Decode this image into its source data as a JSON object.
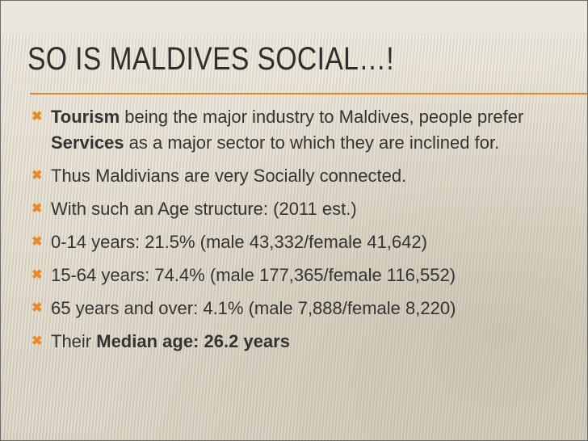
{
  "slide": {
    "title": "SO IS MALDIVES SOCIAL…!",
    "accent_color": "#e08a2e",
    "bullet_icon": "x-mark-icon",
    "bullets": [
      {
        "parts": [
          {
            "bold": "Tourism"
          },
          {
            "text": " being the major industry to Maldives, people prefer "
          },
          {
            "bold": "Services"
          },
          {
            "text": " as a major sector to which they are inclined for."
          }
        ]
      },
      {
        "text": "Thus Maldivians are very Socially connected."
      },
      {
        "text": "With such an Age structure: (2011 est.)"
      },
      {
        "text": "0-14 years: 21.5% (male 43,332/female 41,642)"
      },
      {
        "text": "15-64 years: 74.4% (male 177,365/female 116,552)"
      },
      {
        "text": "65 years and over: 4.1% (male 7,888/female 8,220)"
      },
      {
        "parts": [
          {
            "text": "Their "
          },
          {
            "bold": "Median age: 26.2 years"
          }
        ]
      }
    ]
  }
}
